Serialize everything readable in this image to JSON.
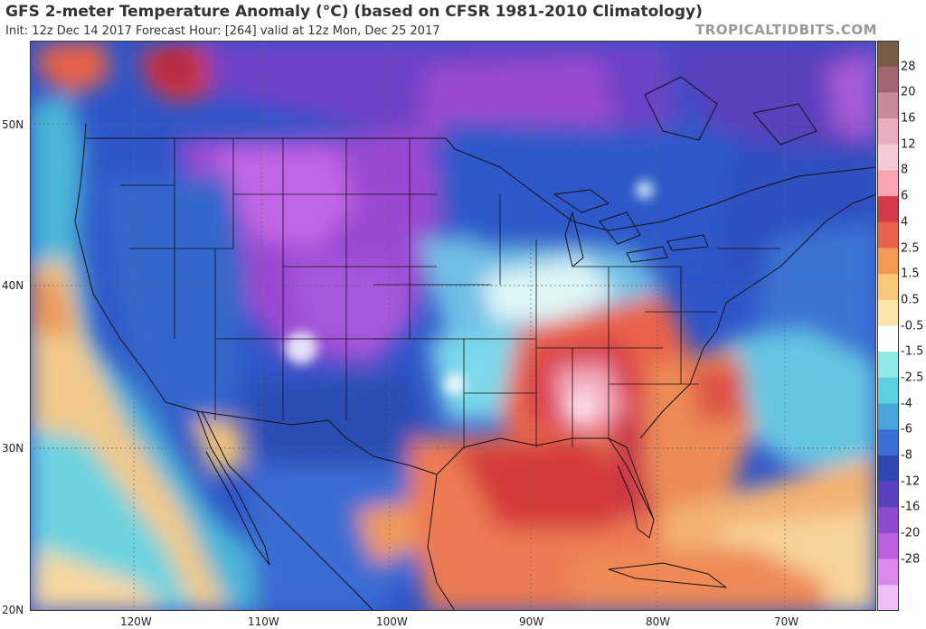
{
  "header": {
    "title": "GFS 2-meter Temperature Anomaly (°C) (based on CFSR 1981-2010 Climatology)",
    "subtitle": "Init: 12z Dec 14 2017   Forecast Hour: [264]   valid at 12z Mon, Dec 25 2017",
    "brand": "TROPICALTIDBITS.COM"
  },
  "axes": {
    "lat_labels": [
      "50N",
      "40N",
      "30N",
      "20N"
    ],
    "lon_labels": [
      "120W",
      "110W",
      "100W",
      "90W",
      "80W",
      "70W"
    ]
  },
  "colorbar": {
    "labels": [
      "28",
      "20",
      "16",
      "12",
      "8",
      "6",
      "4",
      "2.5",
      "1.5",
      "0.5",
      "-0.5",
      "-1.5",
      "-2.5",
      "-4",
      "-6",
      "-8",
      "-12",
      "-16",
      "-20",
      "-28"
    ],
    "colors": [
      "#7a5a48",
      "#a2646e",
      "#c88a98",
      "#e8aebf",
      "#f5c9d6",
      "#f9a3b5",
      "#d63a4a",
      "#e9624a",
      "#f39a55",
      "#f7c77c",
      "#fbe4aa",
      "#ffffff",
      "#8ee9e7",
      "#5ccfe0",
      "#48a5dc",
      "#3b6fd6",
      "#2e47b3",
      "#5b3fbf",
      "#8d49d0",
      "#bb5ee0",
      "#dc89ee",
      "#eebef7"
    ]
  }
}
